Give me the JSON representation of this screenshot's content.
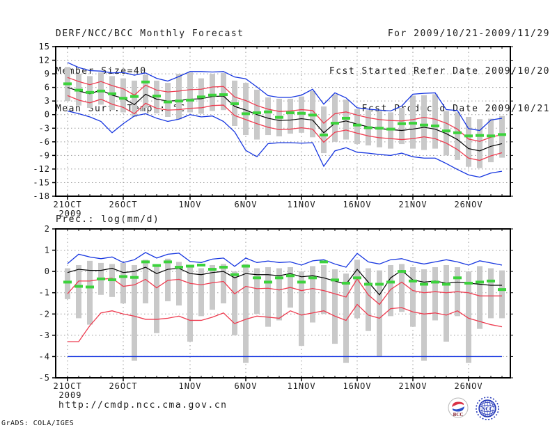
{
  "header": {
    "left": [
      "DERF/NCC/BCC Monthly Forecast",
      "Member Size=40",
      "Mean Surf. Temp.: °C"
    ],
    "right": [
      "For 2009/10/21-2009/11/29",
      "Fcst Started Refer Date 2009/10/20",
      "Fcst Produced Date 2009/10/21"
    ]
  },
  "footer": {
    "url": "http://cmdp.ncc.cma.gov.cn",
    "credit": "GrADS: COLA/IGES"
  },
  "logos": {
    "bcc_label": "BCC",
    "ncc_label": "NCC"
  },
  "colors": {
    "envelope_blue": "#1535e0",
    "sigma_red": "#ee3c50",
    "mean_black": "#000000",
    "obs_green": "#3cd23c",
    "spread_gray": "#c9c9c9",
    "grid_gray": "#9a9a9a",
    "frame_black": "#000000"
  },
  "chart_data": [
    {
      "type": "line",
      "title": "Mean Surf. Temp.: °C",
      "ylim": [
        -18,
        15
      ],
      "yticks": [
        15,
        12,
        9,
        6,
        3,
        0,
        -3,
        -6,
        -9,
        -12,
        -15,
        -18
      ],
      "n_days": 40,
      "grid": true,
      "x_tick_labels": [
        "21OCT",
        "26OCT",
        "1NOV",
        "6NOV",
        "11NOV",
        "16NOV",
        "21NOV",
        "26NOV"
      ],
      "x_tick_days": [
        0,
        5,
        11,
        16,
        21,
        26,
        31,
        36
      ],
      "x_year_label": "2009",
      "series": [
        {
          "name": "ensemble-max",
          "style": "line",
          "color": "#1535e0",
          "values": [
            11.5,
            10.4,
            9.7,
            9.6,
            9.2,
            9.3,
            8.7,
            9.2,
            8.0,
            7.4,
            8.4,
            9.5,
            9.5,
            9.4,
            9.5,
            8.3,
            7.9,
            6.1,
            4.2,
            3.8,
            3.8,
            4.3,
            5.6,
            2.3,
            4.8,
            3.7,
            1.5,
            1.2,
            1.0,
            0.8,
            1.9,
            4.5,
            4.7,
            4.8,
            1.1,
            0.9,
            -3.1,
            -3.5,
            -1.2,
            -0.8
          ]
        },
        {
          "name": "plus-sigma",
          "style": "line",
          "color": "#ee3c50",
          "values": [
            8.2,
            7.3,
            6.6,
            7.3,
            6.4,
            5.7,
            4.3,
            6.5,
            5.4,
            5.0,
            5.2,
            5.5,
            5.6,
            6.1,
            6.2,
            3.9,
            3.1,
            2.0,
            1.2,
            0.7,
            0.8,
            1.1,
            0.9,
            -1.9,
            0.2,
            0.6,
            -0.1,
            -0.7,
            -1.1,
            -1.3,
            -1.4,
            -1.1,
            -0.6,
            -1.0,
            -1.9,
            -3.2,
            -5.4,
            -5.9,
            -5.0,
            -4.4
          ]
        },
        {
          "name": "ensemble-mean",
          "style": "line",
          "color": "#000000",
          "values": [
            6.0,
            5.2,
            4.6,
            5.4,
            4.3,
            3.6,
            2.2,
            4.5,
            3.4,
            3.0,
            3.1,
            3.4,
            3.5,
            4.0,
            4.1,
            1.8,
            1.0,
            0.0,
            -0.8,
            -1.3,
            -1.2,
            -0.9,
            -1.2,
            -4.0,
            -1.9,
            -1.4,
            -2.1,
            -2.7,
            -3.1,
            -3.3,
            -3.5,
            -3.2,
            -2.8,
            -3.2,
            -4.2,
            -5.5,
            -7.5,
            -8.0,
            -7.0,
            -6.4
          ]
        },
        {
          "name": "minus-sigma",
          "style": "line",
          "color": "#ee3c50",
          "values": [
            4.2,
            3.2,
            2.6,
            3.4,
            2.3,
            1.6,
            0.2,
            2.5,
            1.4,
            1.0,
            1.1,
            1.4,
            1.5,
            2.0,
            2.1,
            -0.2,
            -1.1,
            -2.0,
            -2.8,
            -3.3,
            -3.2,
            -2.9,
            -3.2,
            -6.1,
            -3.9,
            -3.4,
            -4.1,
            -4.7,
            -5.1,
            -5.3,
            -5.5,
            -5.3,
            -4.9,
            -5.3,
            -6.3,
            -7.7,
            -9.6,
            -10.1,
            -9.1,
            -8.4
          ]
        },
        {
          "name": "ensemble-min",
          "style": "line",
          "color": "#1535e0",
          "values": [
            0.8,
            0.2,
            -0.5,
            -1.5,
            -4.0,
            -2.0,
            -0.3,
            0.2,
            -0.8,
            -1.5,
            -1.0,
            0.0,
            -0.5,
            -0.3,
            -1.5,
            -3.8,
            -7.9,
            -9.3,
            -6.4,
            -6.2,
            -6.2,
            -6.3,
            -6.2,
            -11.4,
            -8.0,
            -7.3,
            -8.3,
            -8.5,
            -8.8,
            -9.0,
            -8.5,
            -9.3,
            -9.6,
            -9.6,
            -10.8,
            -12.1,
            -13.3,
            -13.8,
            -12.9,
            -12.5
          ]
        },
        {
          "name": "climatology-obs",
          "style": "dash-markers",
          "color": "#3cd23c",
          "values": [
            6.8,
            5.4,
            4.9,
            5.2,
            4.6,
            3.6,
            4.0,
            7.2,
            4.1,
            2.8,
            3.0,
            3.2,
            3.9,
            4.3,
            4.4,
            2.4,
            0.2,
            0.4,
            0.6,
            -0.6,
            0.4,
            0.3,
            -0.1,
            -4.5,
            -1.9,
            -0.8,
            -2.3,
            -2.9,
            -3.0,
            -3.2,
            -2.0,
            -1.9,
            -2.3,
            -2.5,
            -3.6,
            -4.0,
            -4.7,
            -4.6,
            -4.7,
            -4.4
          ]
        },
        {
          "name": "member-spread",
          "style": "bars",
          "color": "#c9c9c9",
          "top": [
            10.5,
            9.0,
            8.5,
            9.3,
            8.5,
            8.0,
            7.5,
            8.8,
            7.5,
            7.0,
            9.0,
            9.3,
            8.0,
            9.0,
            9.2,
            7.5,
            7.0,
            5.5,
            3.8,
            3.5,
            3.5,
            4.0,
            5.2,
            1.8,
            4.5,
            3.3,
            1.2,
            1.0,
            0.8,
            0.5,
            1.5,
            4.2,
            4.3,
            4.5,
            0.8,
            0.5,
            -0.5,
            -1.0,
            -0.9,
            -0.3
          ],
          "bottom": [
            3.0,
            2.0,
            1.5,
            2.2,
            1.0,
            0.5,
            -0.5,
            1.5,
            0.3,
            -0.5,
            -1.0,
            0.5,
            0.2,
            0.8,
            1.0,
            -2.5,
            -4.5,
            -5.5,
            -4.5,
            -4.8,
            -4.2,
            -4.0,
            -5.0,
            -8.5,
            -6.0,
            -5.5,
            -6.5,
            -6.8,
            -7.2,
            -7.5,
            -6.5,
            -7.5,
            -7.8,
            -7.5,
            -9.0,
            -10.0,
            -11.5,
            -11.8,
            -10.5,
            -9.5
          ]
        }
      ]
    },
    {
      "type": "line",
      "title": "Prec.: log(mm/d)",
      "ylim": [
        -5,
        2
      ],
      "yticks": [
        2,
        1,
        0,
        -1,
        -2,
        -3,
        -4,
        -5
      ],
      "n_days": 40,
      "grid": true,
      "x_tick_labels": [
        "21OCT",
        "26OCT",
        "1NOV",
        "6NOV",
        "11NOV",
        "16NOV",
        "21NOV",
        "26NOV"
      ],
      "x_tick_days": [
        0,
        5,
        11,
        16,
        21,
        26,
        31,
        36
      ],
      "x_year_label": "2009",
      "series": [
        {
          "name": "ensemble-max",
          "style": "line",
          "color": "#1535e0",
          "values": [
            0.37,
            0.81,
            0.68,
            0.6,
            0.68,
            0.42,
            0.55,
            0.89,
            0.63,
            0.81,
            0.86,
            0.47,
            0.42,
            0.58,
            0.63,
            0.24,
            0.63,
            0.42,
            0.49,
            0.42,
            0.45,
            0.3,
            0.5,
            0.55,
            0.35,
            0.2,
            0.85,
            0.45,
            0.35,
            0.55,
            0.6,
            0.45,
            0.35,
            0.45,
            0.55,
            0.45,
            0.3,
            0.5,
            0.4,
            0.3
          ]
        },
        {
          "name": "plus-sigma",
          "style": "line",
          "color": "#ee3c50",
          "values": [
            -1.05,
            -0.45,
            -0.45,
            -0.37,
            -0.32,
            -0.7,
            -0.63,
            -0.37,
            -0.77,
            -0.42,
            -0.37,
            -0.56,
            -0.63,
            -0.53,
            -0.47,
            -1.05,
            -0.7,
            -0.81,
            -0.79,
            -0.87,
            -0.75,
            -0.9,
            -0.8,
            -0.9,
            -1.05,
            -1.2,
            -0.35,
            -1.1,
            -1.55,
            -0.85,
            -0.5,
            -0.9,
            -1.0,
            -0.95,
            -1.0,
            -0.95,
            -1.0,
            -1.15,
            -1.15,
            -1.15
          ]
        },
        {
          "name": "ensemble-mean",
          "style": "line",
          "color": "#000000",
          "values": [
            -0.05,
            0.1,
            0.05,
            0.05,
            0.15,
            -0.05,
            0.0,
            0.2,
            -0.1,
            0.1,
            0.15,
            -0.1,
            -0.15,
            -0.05,
            0.0,
            -0.3,
            -0.1,
            -0.15,
            -0.15,
            -0.2,
            -0.1,
            -0.25,
            -0.2,
            -0.3,
            -0.45,
            -0.6,
            0.1,
            -0.5,
            -1.1,
            -0.3,
            0.05,
            -0.4,
            -0.5,
            -0.45,
            -0.55,
            -0.5,
            -0.55,
            -0.6,
            -0.65,
            -0.65
          ]
        },
        {
          "name": "minus-sigma",
          "style": "line",
          "color": "#ee3c50",
          "values": [
            -3.3,
            -3.3,
            -2.55,
            -1.95,
            -1.85,
            -2.0,
            -2.1,
            -2.25,
            -2.25,
            -2.2,
            -2.1,
            -2.3,
            -2.3,
            -2.15,
            -1.95,
            -2.45,
            -2.25,
            -2.1,
            -2.15,
            -2.2,
            -1.85,
            -2.05,
            -1.95,
            -1.85,
            -2.1,
            -2.3,
            -1.55,
            -2.05,
            -2.2,
            -1.75,
            -1.7,
            -1.9,
            -2.0,
            -1.95,
            -2.05,
            -1.85,
            -2.2,
            -2.35,
            -2.5,
            -2.6
          ]
        },
        {
          "name": "ensemble-min",
          "style": "line",
          "color": "#1535e0",
          "values": [
            -4.0,
            -4.0,
            -4.0,
            -4.0,
            -4.0,
            -4.0,
            -4.0,
            -4.0,
            -4.0,
            -4.0,
            -4.0,
            -4.0,
            -4.0,
            -4.0,
            -4.0,
            -4.0,
            -4.0,
            -4.0,
            -4.0,
            -4.0,
            -4.0,
            -4.0,
            -4.0,
            -4.0,
            -4.0,
            -4.0,
            -4.0,
            -4.0,
            -4.0,
            -4.0,
            -4.0,
            -4.0,
            -4.0,
            -4.0,
            -4.0,
            -4.0,
            -4.0,
            -4.0,
            -4.0,
            -4.0
          ]
        },
        {
          "name": "climatology-obs",
          "style": "dash-markers",
          "color": "#3cd23c",
          "values": [
            -0.5,
            -0.7,
            -0.73,
            -0.35,
            -0.39,
            -0.24,
            -0.28,
            0.45,
            0.28,
            0.45,
            0.2,
            0.25,
            0.3,
            0.1,
            0.2,
            -0.15,
            0.25,
            -0.3,
            -0.5,
            -0.3,
            -0.2,
            -0.5,
            -0.3,
            0.45,
            -0.4,
            -0.55,
            -0.3,
            -0.6,
            -0.6,
            -0.5,
            0.0,
            -0.45,
            -0.6,
            -0.5,
            -0.6,
            -0.3,
            -0.55,
            -0.5,
            -0.45,
            -0.85
          ]
        },
        {
          "name": "member-spread",
          "style": "bars",
          "color": "#c9c9c9",
          "top": [
            0.15,
            0.3,
            0.5,
            0.4,
            0.35,
            0.4,
            0.3,
            0.55,
            0.25,
            0.6,
            0.45,
            0.2,
            0.15,
            0.3,
            0.35,
            0.0,
            0.35,
            0.15,
            0.2,
            0.15,
            0.2,
            0.0,
            0.25,
            0.3,
            0.1,
            -0.1,
            0.55,
            0.15,
            0.05,
            0.3,
            0.35,
            0.2,
            0.1,
            0.2,
            0.3,
            0.2,
            0.0,
            0.25,
            0.15,
            0.05
          ],
          "bottom": [
            -1.3,
            -2.2,
            -2.5,
            -1.1,
            -1.2,
            -1.5,
            -4.2,
            -1.5,
            -2.9,
            -1.4,
            -1.6,
            -3.3,
            -2.1,
            -1.8,
            -1.5,
            -3.0,
            -4.3,
            -2.0,
            -2.6,
            -2.3,
            -1.7,
            -3.5,
            -2.4,
            -2.0,
            -3.4,
            -4.3,
            -2.2,
            -2.8,
            -4.0,
            -2.1,
            -1.9,
            -2.6,
            -4.2,
            -2.3,
            -3.3,
            -2.1,
            -4.3,
            -2.7,
            -2.2,
            -2.2
          ]
        }
      ]
    }
  ]
}
